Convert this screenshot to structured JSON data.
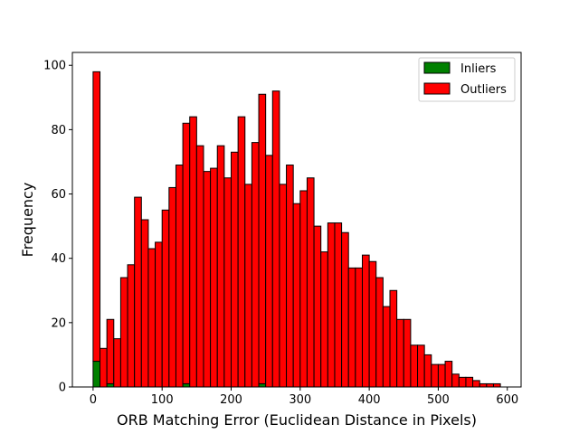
{
  "chart_data": {
    "type": "bar",
    "title": "",
    "xlabel": "ORB Matching Error (Euclidean Distance in Pixels)",
    "ylabel": "Frequency",
    "xlim": [
      -30,
      620
    ],
    "ylim": [
      0,
      104
    ],
    "xticks": [
      0,
      100,
      200,
      300,
      400,
      500,
      600
    ],
    "yticks": [
      0,
      20,
      40,
      60,
      80,
      100
    ],
    "bin_start": 0,
    "bin_width": 10,
    "legend_position": "top-right",
    "colors": {
      "inliers": "#008000",
      "outliers": "#ff0000",
      "edge": "#000000"
    },
    "series": [
      {
        "name": "Inliers",
        "stacked_base": true,
        "values": [
          8,
          0,
          1,
          0,
          0,
          0,
          0,
          0,
          0,
          0,
          0,
          0,
          0,
          1,
          0,
          0,
          0,
          0,
          0,
          0,
          0,
          0,
          0,
          0,
          1,
          0,
          0,
          0,
          0,
          0,
          0,
          0,
          0,
          0,
          0,
          0,
          0,
          0,
          0,
          0,
          0,
          0,
          0,
          0,
          0,
          0,
          0,
          0,
          0,
          0,
          0,
          0,
          0,
          0,
          0,
          0,
          0,
          0,
          0
        ]
      },
      {
        "name": "Outliers",
        "stacked_base": false,
        "values": [
          90,
          12,
          20,
          15,
          34,
          38,
          59,
          52,
          43,
          45,
          55,
          62,
          69,
          81,
          84,
          75,
          67,
          68,
          75,
          65,
          73,
          84,
          63,
          76,
          90,
          72,
          92,
          63,
          69,
          57,
          61,
          65,
          50,
          42,
          51,
          51,
          48,
          37,
          37,
          41,
          39,
          34,
          25,
          30,
          21,
          21,
          13,
          13,
          10,
          7,
          7,
          8,
          4,
          3,
          3,
          2,
          1,
          1,
          1
        ]
      }
    ]
  }
}
